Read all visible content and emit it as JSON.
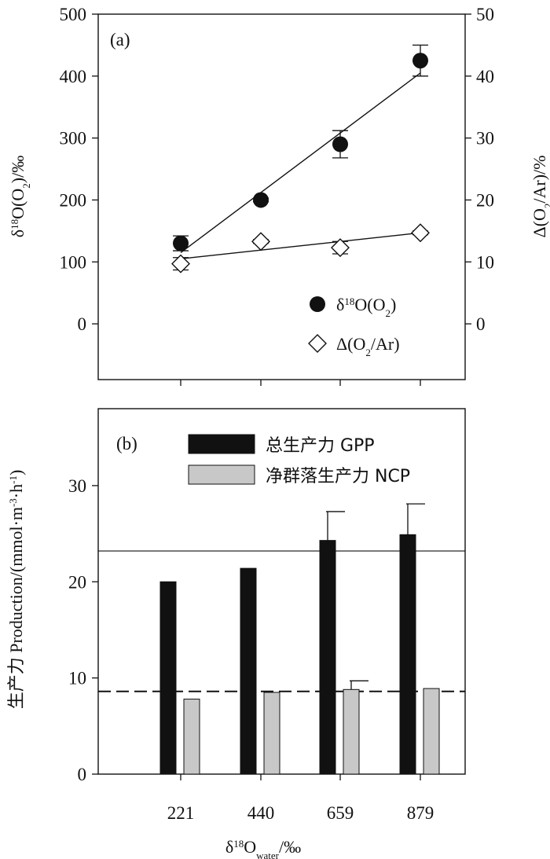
{
  "chart_data": [
    {
      "type": "scatter",
      "panel_label": "(a)",
      "x": [
        221,
        440,
        659,
        879
      ],
      "left_axis": {
        "ticks": [
          "0",
          "100",
          "200",
          "300",
          "400",
          "500"
        ],
        "ylim": [
          -90,
          500
        ],
        "label_parts": [
          "δ",
          "18",
          "O(O",
          "2",
          ")/‰"
        ]
      },
      "right_axis": {
        "ticks": [
          "0",
          "10",
          "20",
          "30",
          "40",
          "50"
        ],
        "ylim": [
          -9,
          50
        ],
        "label_parts": [
          "Δ(O",
          "2",
          "/Ar)/%"
        ]
      },
      "series": [
        {
          "name_parts": [
            "δ",
            "18",
            "O(O",
            "2",
            ")"
          ],
          "marker": "filled-circle",
          "axis": "left",
          "values": [
            130,
            200,
            290,
            425
          ],
          "errors": [
            12,
            3,
            22,
            25
          ],
          "fit_line": [
            115,
            405
          ]
        },
        {
          "name_parts": [
            "Δ(O",
            "2",
            "/Ar)"
          ],
          "marker": "open-diamond",
          "axis": "right",
          "values": [
            9.7,
            13.3,
            12.3,
            14.7
          ],
          "errors": [
            1.0,
            0.3,
            1.0,
            0.3
          ],
          "fit_line": [
            10.5,
            14.7
          ]
        }
      ],
      "legend_position": "bottom-right"
    },
    {
      "type": "bar",
      "panel_label": "(b)",
      "categories": [
        "221",
        "440",
        "659",
        "879"
      ],
      "ylim": [
        0,
        38
      ],
      "y_ticks": [
        "0",
        "10",
        "20",
        "30"
      ],
      "ylabel_parts": [
        "生产力 Production/(mmol·m",
        "-3",
        "·h",
        "-1",
        ")"
      ],
      "xlabel_parts": [
        "δ",
        "18",
        "O",
        "water",
        "/‰"
      ],
      "series": [
        {
          "name": "总生产力 GPP",
          "color": "#111111",
          "values": [
            20.0,
            21.4,
            24.3,
            24.9
          ],
          "errors": [
            0,
            0,
            3.0,
            3.2
          ]
        },
        {
          "name": "净群落生产力 NCP",
          "color": "#c8c8c8",
          "values": [
            7.8,
            8.5,
            8.8,
            8.9
          ],
          "errors": [
            0,
            0,
            0.9,
            0
          ]
        }
      ],
      "reference_lines": [
        {
          "style": "solid",
          "value": 23.2
        },
        {
          "style": "dashed",
          "value": 8.6
        }
      ],
      "legend_position": "top"
    }
  ]
}
